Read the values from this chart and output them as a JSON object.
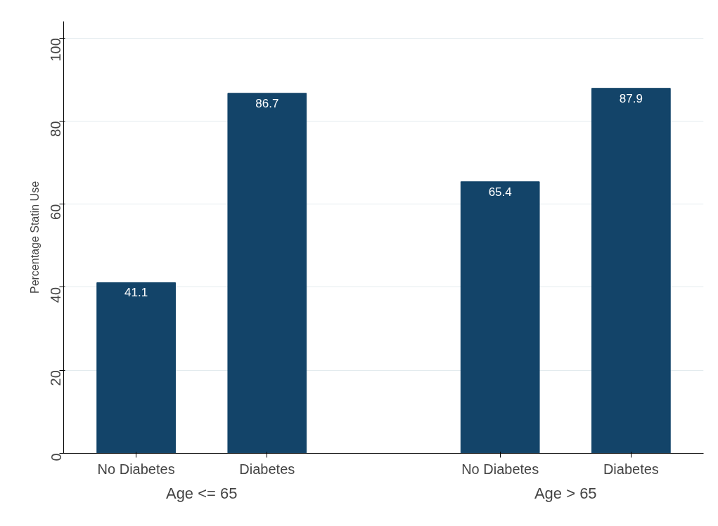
{
  "chart_data": {
    "type": "bar",
    "ylabel": "Percentage Statin Use",
    "categories": [
      "No Diabetes",
      "Diabetes",
      "No Diabetes",
      "Diabetes"
    ],
    "values": [
      41.1,
      86.7,
      65.4,
      87.9
    ],
    "color": "#134469",
    "ylim": [
      0,
      104
    ],
    "yticks": [
      0,
      20,
      40,
      60,
      80,
      100
    ],
    "grid": "y",
    "data_labels": true,
    "annotations": [
      "Age <= 65",
      "Age > 65"
    ]
  }
}
